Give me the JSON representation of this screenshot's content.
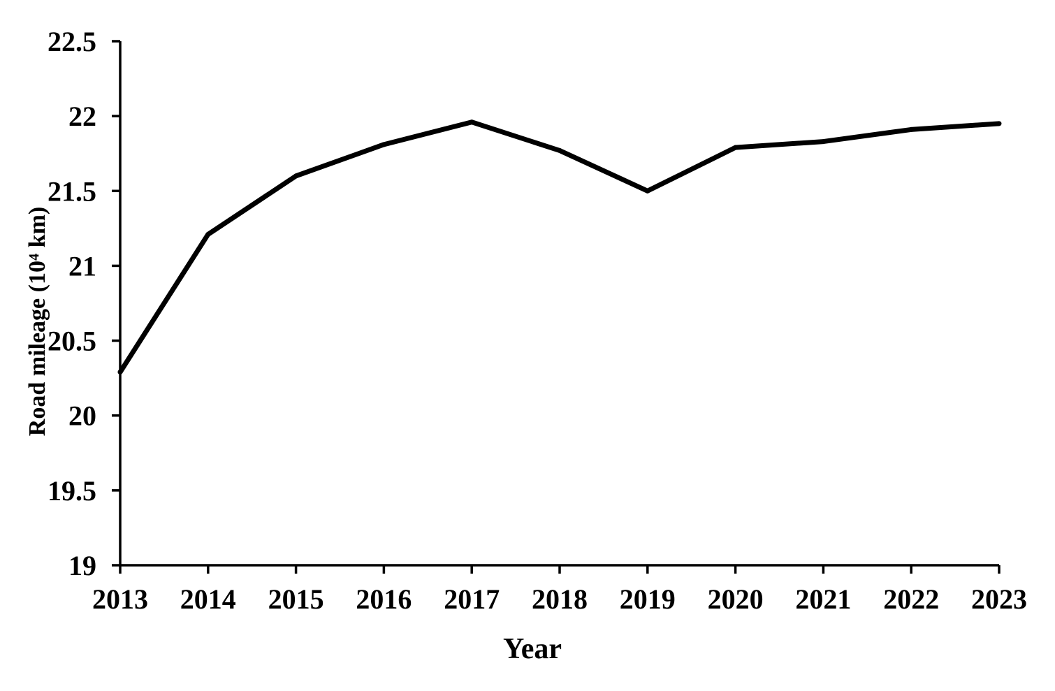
{
  "chart_data": {
    "type": "line",
    "xlabel": "Year",
    "ylabel": "Road mileage (10⁴ km)",
    "ylim": [
      19,
      22.5
    ],
    "yticks": [
      "19",
      "19.5",
      "20",
      "20.5",
      "21",
      "21.5",
      "22",
      "22.5"
    ],
    "categories": [
      "2013",
      "2014",
      "2015",
      "2016",
      "2017",
      "2018",
      "2019",
      "2020",
      "2021",
      "2022",
      "2023"
    ],
    "series": [
      {
        "values": [
          20.29,
          21.21,
          21.6,
          21.81,
          21.96,
          21.77,
          21.5,
          21.79,
          21.83,
          21.91,
          21.95
        ]
      }
    ],
    "grid": false,
    "legend": "none",
    "colors": {
      "line": "#000000",
      "axis": "#000000",
      "text": "#000000",
      "background": "#ffffff"
    }
  }
}
